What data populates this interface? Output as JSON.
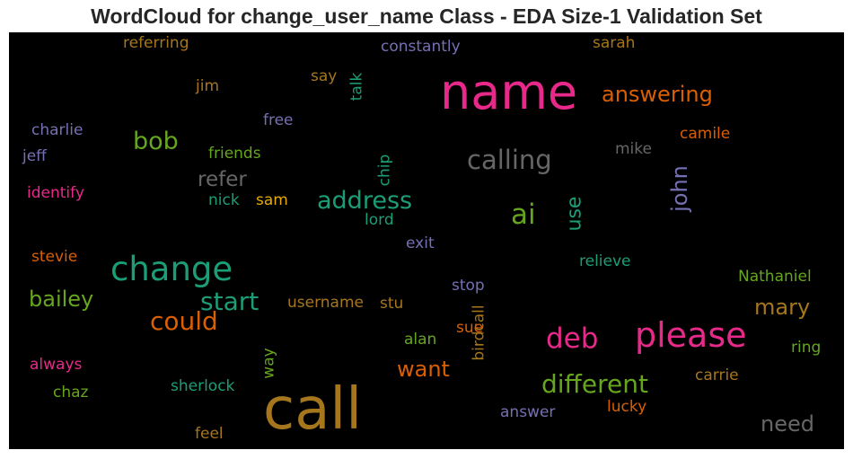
{
  "chart_data": {
    "type": "wordcloud",
    "title": "WordCloud for change_user_name Class - EDA Size-1 Validation Set",
    "background": "#000000",
    "words": [
      {
        "text": "call",
        "color": "#a6761d",
        "orientation": "horizontal"
      },
      {
        "text": "name",
        "color": "#e7298a",
        "orientation": "horizontal"
      },
      {
        "text": "change",
        "color": "#1b9e77",
        "orientation": "horizontal"
      },
      {
        "text": "please",
        "color": "#e7298a",
        "orientation": "horizontal"
      },
      {
        "text": "calling",
        "color": "#666666",
        "orientation": "horizontal"
      },
      {
        "text": "deb",
        "color": "#e7298a",
        "orientation": "horizontal"
      },
      {
        "text": "different",
        "color": "#66a61e",
        "orientation": "horizontal"
      },
      {
        "text": "address",
        "color": "#1b9e77",
        "orientation": "horizontal"
      },
      {
        "text": "start",
        "color": "#1b9e77",
        "orientation": "horizontal"
      },
      {
        "text": "could",
        "color": "#d95f02",
        "orientation": "horizontal"
      },
      {
        "text": "ai",
        "color": "#66a61e",
        "orientation": "horizontal"
      },
      {
        "text": "answering",
        "color": "#d95f02",
        "orientation": "horizontal"
      },
      {
        "text": "bob",
        "color": "#66a61e",
        "orientation": "horizontal"
      },
      {
        "text": "bailey",
        "color": "#66a61e",
        "orientation": "horizontal"
      },
      {
        "text": "mary",
        "color": "#a6761d",
        "orientation": "horizontal"
      },
      {
        "text": "need",
        "color": "#666666",
        "orientation": "horizontal"
      },
      {
        "text": "refer",
        "color": "#666666",
        "orientation": "horizontal"
      },
      {
        "text": "want",
        "color": "#d95f02",
        "orientation": "horizontal"
      },
      {
        "text": "john",
        "color": "#7570b3",
        "orientation": "vertical"
      },
      {
        "text": "use",
        "color": "#1b9e77",
        "orientation": "vertical"
      },
      {
        "text": "username",
        "color": "#a6761d",
        "orientation": "horizontal"
      },
      {
        "text": "constantly",
        "color": "#7570b3",
        "orientation": "horizontal"
      },
      {
        "text": "referring",
        "color": "#a6761d",
        "orientation": "horizontal"
      },
      {
        "text": "sarah",
        "color": "#a6761d",
        "orientation": "horizontal"
      },
      {
        "text": "say",
        "color": "#a6761d",
        "orientation": "horizontal"
      },
      {
        "text": "talk",
        "color": "#1b9e77",
        "orientation": "vertical"
      },
      {
        "text": "jim",
        "color": "#a6761d",
        "orientation": "horizontal"
      },
      {
        "text": "free",
        "color": "#7570b3",
        "orientation": "horizontal"
      },
      {
        "text": "charlie",
        "color": "#7570b3",
        "orientation": "horizontal"
      },
      {
        "text": "jeff",
        "color": "#7570b3",
        "orientation": "horizontal"
      },
      {
        "text": "friends",
        "color": "#66a61e",
        "orientation": "horizontal"
      },
      {
        "text": "chip",
        "color": "#1b9e77",
        "orientation": "vertical"
      },
      {
        "text": "mike",
        "color": "#666666",
        "orientation": "horizontal"
      },
      {
        "text": "camile",
        "color": "#d95f02",
        "orientation": "horizontal"
      },
      {
        "text": "identify",
        "color": "#e7298a",
        "orientation": "horizontal"
      },
      {
        "text": "nick",
        "color": "#1b9e77",
        "orientation": "horizontal"
      },
      {
        "text": "sam",
        "color": "#e6ab02",
        "orientation": "horizontal"
      },
      {
        "text": "lord",
        "color": "#1b9e77",
        "orientation": "horizontal"
      },
      {
        "text": "exit",
        "color": "#7570b3",
        "orientation": "horizontal"
      },
      {
        "text": "stevie",
        "color": "#d95f02",
        "orientation": "horizontal"
      },
      {
        "text": "relieve",
        "color": "#1b9e77",
        "orientation": "horizontal"
      },
      {
        "text": "Nathaniel",
        "color": "#66a61e",
        "orientation": "horizontal"
      },
      {
        "text": "stop",
        "color": "#7570b3",
        "orientation": "horizontal"
      },
      {
        "text": "stu",
        "color": "#a6761d",
        "orientation": "horizontal"
      },
      {
        "text": "birdcall",
        "color": "#a6761d",
        "orientation": "vertical"
      },
      {
        "text": "sue",
        "color": "#d95f02",
        "orientation": "horizontal"
      },
      {
        "text": "alan",
        "color": "#66a61e",
        "orientation": "horizontal"
      },
      {
        "text": "way",
        "color": "#66a61e",
        "orientation": "vertical"
      },
      {
        "text": "ring",
        "color": "#66a61e",
        "orientation": "horizontal"
      },
      {
        "text": "always",
        "color": "#e7298a",
        "orientation": "horizontal"
      },
      {
        "text": "chaz",
        "color": "#66a61e",
        "orientation": "horizontal"
      },
      {
        "text": "sherlock",
        "color": "#1b9e77",
        "orientation": "horizontal"
      },
      {
        "text": "carrie",
        "color": "#a6761d",
        "orientation": "horizontal"
      },
      {
        "text": "answer",
        "color": "#7570b3",
        "orientation": "horizontal"
      },
      {
        "text": "lucky",
        "color": "#d95f02",
        "orientation": "horizontal"
      },
      {
        "text": "feel",
        "color": "#a6761d",
        "orientation": "horizontal"
      }
    ]
  }
}
